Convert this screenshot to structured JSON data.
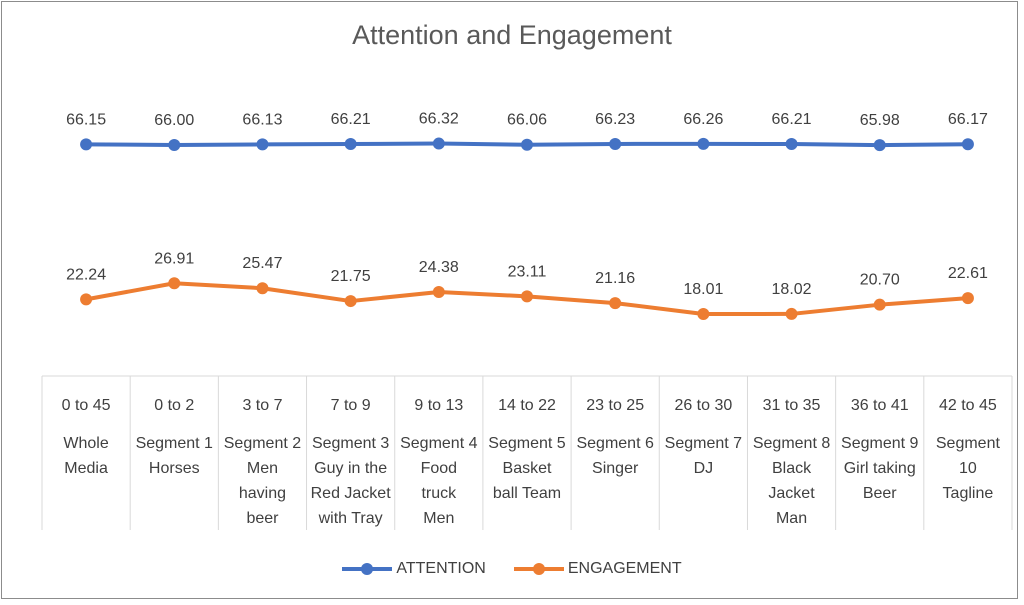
{
  "chart_data": {
    "type": "line",
    "title": "Attention and Engagement",
    "categories": [
      {
        "range": "0 to 45",
        "label": [
          "Whole",
          "Media"
        ]
      },
      {
        "range": "0 to 2",
        "label": [
          "Segment 1",
          "Horses"
        ]
      },
      {
        "range": "3 to 7",
        "label": [
          "Segment 2",
          "Men",
          "having",
          "beer"
        ]
      },
      {
        "range": "7 to 9",
        "label": [
          "Segment 3",
          "Guy in the",
          "Red Jacket",
          "with Tray"
        ]
      },
      {
        "range": "9 to 13",
        "label": [
          "Segment 4",
          "Food",
          "truck",
          "Men"
        ]
      },
      {
        "range": "14 to 22",
        "label": [
          "Segment 5",
          "Basket",
          "ball  Team"
        ]
      },
      {
        "range": "23 to 25",
        "label": [
          "Segment 6",
          "Singer"
        ]
      },
      {
        "range": "26 to 30",
        "label": [
          "Segment 7",
          "DJ"
        ]
      },
      {
        "range": "31 to 35",
        "label": [
          "Segment 8",
          "Black",
          "Jacket",
          "Man"
        ]
      },
      {
        "range": "36 to 41",
        "label": [
          "Segment 9",
          "Girl taking",
          "Beer"
        ]
      },
      {
        "range": "42 to 45",
        "label": [
          "Segment",
          "10",
          "Tagline"
        ]
      }
    ],
    "series": [
      {
        "name": "ATTENTION",
        "color": "#4472c4",
        "values": [
          66.15,
          66.0,
          66.13,
          66.21,
          66.32,
          66.06,
          66.23,
          66.26,
          66.21,
          65.98,
          66.17
        ],
        "labels": [
          "66.15",
          "66.00",
          "66.13",
          "66.21",
          "66.32",
          "66.06",
          "66.23",
          "66.26",
          "66.21",
          "65.98",
          "66.17"
        ]
      },
      {
        "name": "ENGAGEMENT",
        "color": "#ed7d31",
        "values": [
          22.24,
          26.91,
          25.47,
          21.75,
          24.38,
          23.11,
          21.16,
          18.01,
          18.02,
          20.7,
          22.61
        ],
        "labels": [
          "22.24",
          "26.91",
          "25.47",
          "21.75",
          "24.38",
          "23.11",
          "21.16",
          "18.01",
          "18.02",
          "20.70",
          "22.61"
        ]
      }
    ],
    "legend_position": "bottom",
    "grid": false,
    "axis_line_color": "#d9d9d9"
  }
}
